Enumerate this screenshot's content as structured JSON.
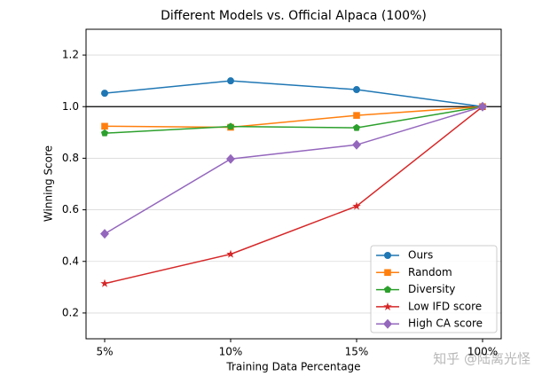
{
  "chart_data": {
    "type": "line",
    "title": "Different Models vs. Official Alpaca (100%)",
    "x_label": "Training Data Percentage",
    "y_label": "Winning Score",
    "categories": [
      "5%",
      "10%",
      "15%",
      "100%"
    ],
    "series": [
      {
        "name": "Ours",
        "color": "#1f77b4",
        "marker": "circle",
        "values": [
          1.052,
          1.1,
          1.066,
          1.0
        ]
      },
      {
        "name": "Random",
        "color": "#ff7f0e",
        "marker": "square",
        "values": [
          0.924,
          0.92,
          0.966,
          1.0
        ]
      },
      {
        "name": "Diversity",
        "color": "#2ca02c",
        "marker": "pentagon",
        "values": [
          0.897,
          0.923,
          0.918,
          1.0
        ]
      },
      {
        "name": "Low IFD score",
        "color": "#d62728",
        "marker": "star",
        "values": [
          0.314,
          0.428,
          0.614,
          1.0
        ]
      },
      {
        "name": "High CA score",
        "color": "#9467bd",
        "marker": "diamond",
        "values": [
          0.507,
          0.797,
          0.852,
          1.0
        ]
      }
    ],
    "ylim": [
      0.1,
      1.3
    ],
    "yticks": [
      0.2,
      0.4,
      0.6,
      0.8,
      {
        "value": 1.0,
        "label": "1.0"
      },
      1.2
    ],
    "hline": 1.0,
    "grid": true,
    "legend": "lower right",
    "watermark": "知乎 @陆离光怪"
  }
}
